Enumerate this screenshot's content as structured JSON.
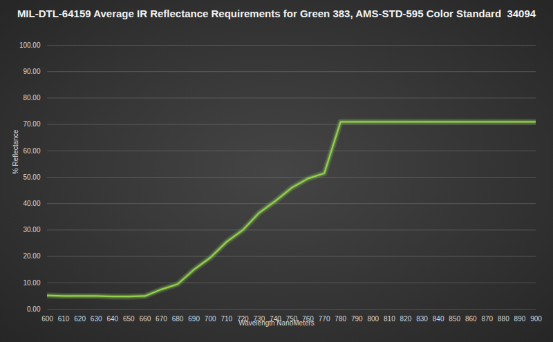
{
  "chart_data": {
    "type": "line",
    "title": "MIL-DTL-64159 Average IR Reflectance Requirements for Green 383, AMS-STD-595 Color Standard  34094",
    "x_label": "Wavelength NanoMeters",
    "y_label": "% Reflectance",
    "x": [
      600,
      610,
      620,
      630,
      640,
      650,
      660,
      670,
      680,
      690,
      700,
      710,
      720,
      730,
      740,
      750,
      760,
      770,
      780,
      790,
      800,
      810,
      820,
      830,
      840,
      850,
      860,
      870,
      880,
      890,
      900
    ],
    "values": [
      5.2,
      5.0,
      5.0,
      5.0,
      4.8,
      4.8,
      5.0,
      7.5,
      9.5,
      15.0,
      19.5,
      25.5,
      30.0,
      36.5,
      41.0,
      46.0,
      49.5,
      51.5,
      71.0,
      71.0,
      71.0,
      71.0,
      71.0,
      71.0,
      71.0,
      71.0,
      71.0,
      71.0,
      71.0,
      71.0,
      71.0
    ],
    "color": "#92d050",
    "xlim": [
      600,
      900
    ],
    "xticks": [
      600,
      610,
      620,
      630,
      640,
      650,
      660,
      670,
      680,
      690,
      700,
      710,
      720,
      730,
      740,
      750,
      760,
      770,
      780,
      790,
      800,
      810,
      820,
      830,
      840,
      850,
      860,
      870,
      880,
      890,
      900
    ],
    "ylim": [
      0,
      100
    ],
    "yticks": [
      {
        "value": 0,
        "label": "0.00"
      },
      {
        "value": 10,
        "label": "10.00"
      },
      {
        "value": 20,
        "label": "20.00"
      },
      {
        "value": 30,
        "label": "30.00"
      },
      {
        "value": 40,
        "label": "40.00"
      },
      {
        "value": 50,
        "label": "50.00"
      },
      {
        "value": 60,
        "label": "60.00"
      },
      {
        "value": 70,
        "label": "70.00"
      },
      {
        "value": 80,
        "label": "80.00"
      },
      {
        "value": 90,
        "label": "90.00"
      },
      {
        "value": 100,
        "label": "100.00"
      }
    ],
    "grid": true
  }
}
